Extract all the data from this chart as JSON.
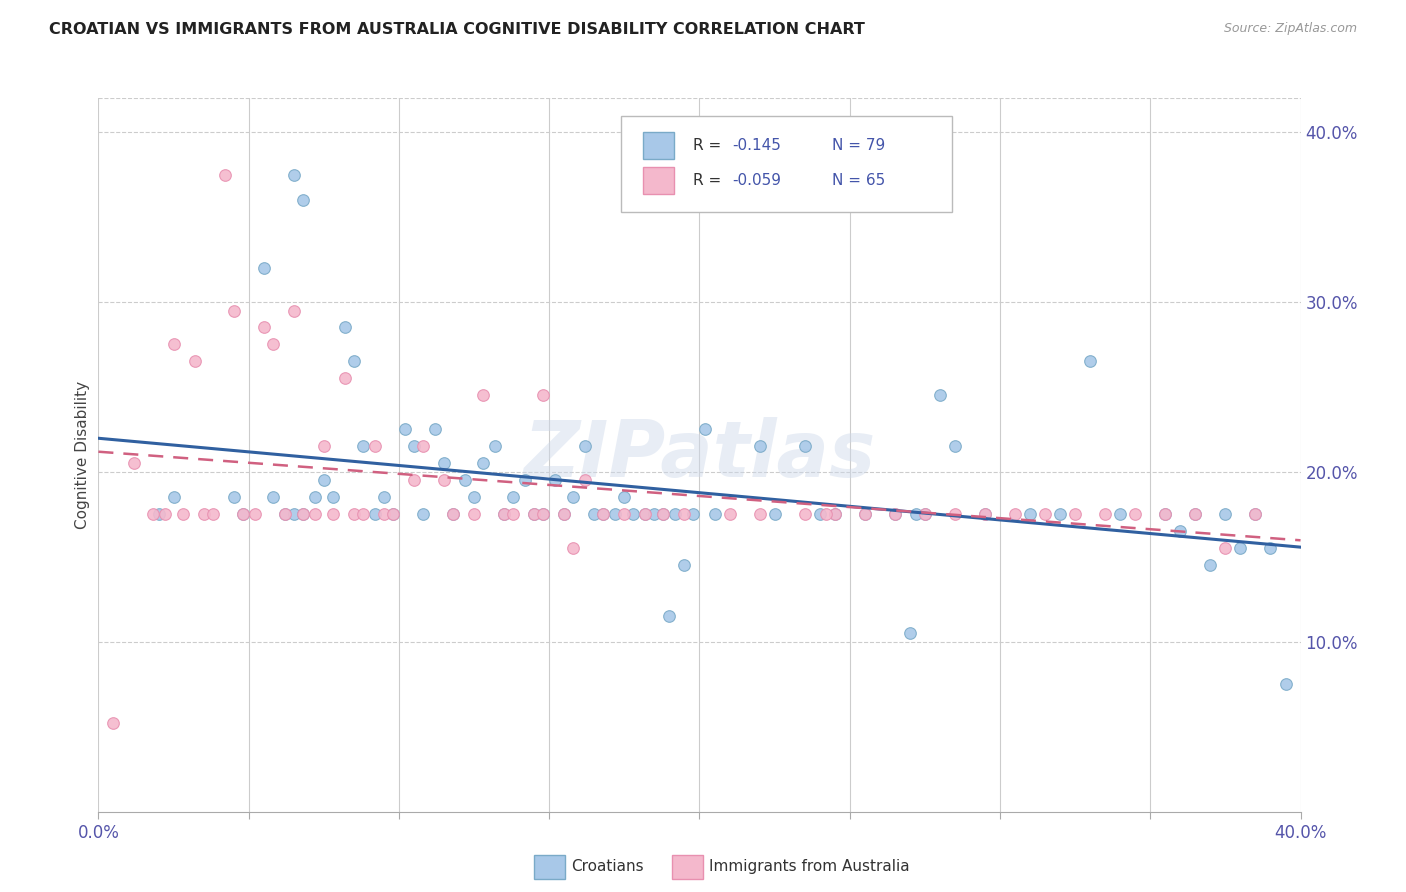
{
  "title": "CROATIAN VS IMMIGRANTS FROM AUSTRALIA COGNITIVE DISABILITY CORRELATION CHART",
  "source": "Source: ZipAtlas.com",
  "ylabel": "Cognitive Disability",
  "xlim": [
    0.0,
    0.4
  ],
  "ylim": [
    0.0,
    0.42
  ],
  "yticks": [
    0.1,
    0.2,
    0.3,
    0.4
  ],
  "ytick_labels": [
    "10.0%",
    "20.0%",
    "30.0%",
    "40.0%"
  ],
  "xticks": [
    0.0,
    0.05,
    0.1,
    0.15,
    0.2,
    0.25,
    0.3,
    0.35,
    0.4
  ],
  "legend_r1": "-0.145",
  "legend_n1": "N = 79",
  "legend_r2": "-0.059",
  "legend_n2": "N = 65",
  "color_blue": "#a8c8e8",
  "color_pink": "#f4b8cc",
  "color_blue_edge": "#7aaac8",
  "color_pink_edge": "#e890b0",
  "color_line_blue": "#3060a0",
  "color_line_pink": "#d06080",
  "watermark": "ZIPatlas",
  "blue_x": [
    0.025,
    0.065,
    0.068,
    0.02,
    0.045,
    0.048,
    0.055,
    0.058,
    0.062,
    0.065,
    0.068,
    0.072,
    0.075,
    0.078,
    0.082,
    0.085,
    0.088,
    0.092,
    0.095,
    0.098,
    0.102,
    0.105,
    0.108,
    0.112,
    0.115,
    0.118,
    0.122,
    0.125,
    0.128,
    0.132,
    0.135,
    0.138,
    0.142,
    0.145,
    0.148,
    0.152,
    0.155,
    0.158,
    0.162,
    0.165,
    0.168,
    0.172,
    0.175,
    0.178,
    0.182,
    0.185,
    0.188,
    0.192,
    0.195,
    0.198,
    0.202,
    0.205,
    0.22,
    0.225,
    0.235,
    0.24,
    0.245,
    0.255,
    0.265,
    0.27,
    0.275,
    0.285,
    0.295,
    0.31,
    0.32,
    0.33,
    0.34,
    0.355,
    0.36,
    0.365,
    0.37,
    0.375,
    0.38,
    0.385,
    0.39,
    0.395,
    0.28,
    0.19,
    0.272
  ],
  "blue_y": [
    0.185,
    0.375,
    0.36,
    0.175,
    0.185,
    0.175,
    0.32,
    0.185,
    0.175,
    0.175,
    0.175,
    0.185,
    0.195,
    0.185,
    0.285,
    0.265,
    0.215,
    0.175,
    0.185,
    0.175,
    0.225,
    0.215,
    0.175,
    0.225,
    0.205,
    0.175,
    0.195,
    0.185,
    0.205,
    0.215,
    0.175,
    0.185,
    0.195,
    0.175,
    0.175,
    0.195,
    0.175,
    0.185,
    0.215,
    0.175,
    0.175,
    0.175,
    0.185,
    0.175,
    0.175,
    0.175,
    0.175,
    0.175,
    0.145,
    0.175,
    0.225,
    0.175,
    0.215,
    0.175,
    0.215,
    0.175,
    0.175,
    0.175,
    0.175,
    0.105,
    0.175,
    0.215,
    0.175,
    0.175,
    0.175,
    0.265,
    0.175,
    0.175,
    0.165,
    0.175,
    0.145,
    0.175,
    0.155,
    0.175,
    0.155,
    0.075,
    0.245,
    0.115,
    0.175
  ],
  "pink_x": [
    0.012,
    0.018,
    0.022,
    0.025,
    0.028,
    0.032,
    0.035,
    0.038,
    0.042,
    0.045,
    0.048,
    0.052,
    0.055,
    0.058,
    0.062,
    0.065,
    0.068,
    0.072,
    0.075,
    0.078,
    0.082,
    0.085,
    0.088,
    0.092,
    0.095,
    0.098,
    0.105,
    0.108,
    0.115,
    0.118,
    0.125,
    0.128,
    0.135,
    0.138,
    0.145,
    0.148,
    0.155,
    0.158,
    0.162,
    0.168,
    0.175,
    0.182,
    0.188,
    0.195,
    0.22,
    0.235,
    0.245,
    0.255,
    0.265,
    0.275,
    0.285,
    0.295,
    0.305,
    0.315,
    0.325,
    0.335,
    0.345,
    0.355,
    0.365,
    0.375,
    0.385,
    0.21,
    0.148,
    0.242,
    0.005
  ],
  "pink_y": [
    0.205,
    0.175,
    0.175,
    0.275,
    0.175,
    0.265,
    0.175,
    0.175,
    0.375,
    0.295,
    0.175,
    0.175,
    0.285,
    0.275,
    0.175,
    0.295,
    0.175,
    0.175,
    0.215,
    0.175,
    0.255,
    0.175,
    0.175,
    0.215,
    0.175,
    0.175,
    0.195,
    0.215,
    0.195,
    0.175,
    0.175,
    0.245,
    0.175,
    0.175,
    0.175,
    0.175,
    0.175,
    0.155,
    0.195,
    0.175,
    0.175,
    0.175,
    0.175,
    0.175,
    0.175,
    0.175,
    0.175,
    0.175,
    0.175,
    0.175,
    0.175,
    0.175,
    0.175,
    0.175,
    0.175,
    0.175,
    0.175,
    0.175,
    0.175,
    0.155,
    0.175,
    0.175,
    0.245,
    0.175,
    0.052
  ]
}
